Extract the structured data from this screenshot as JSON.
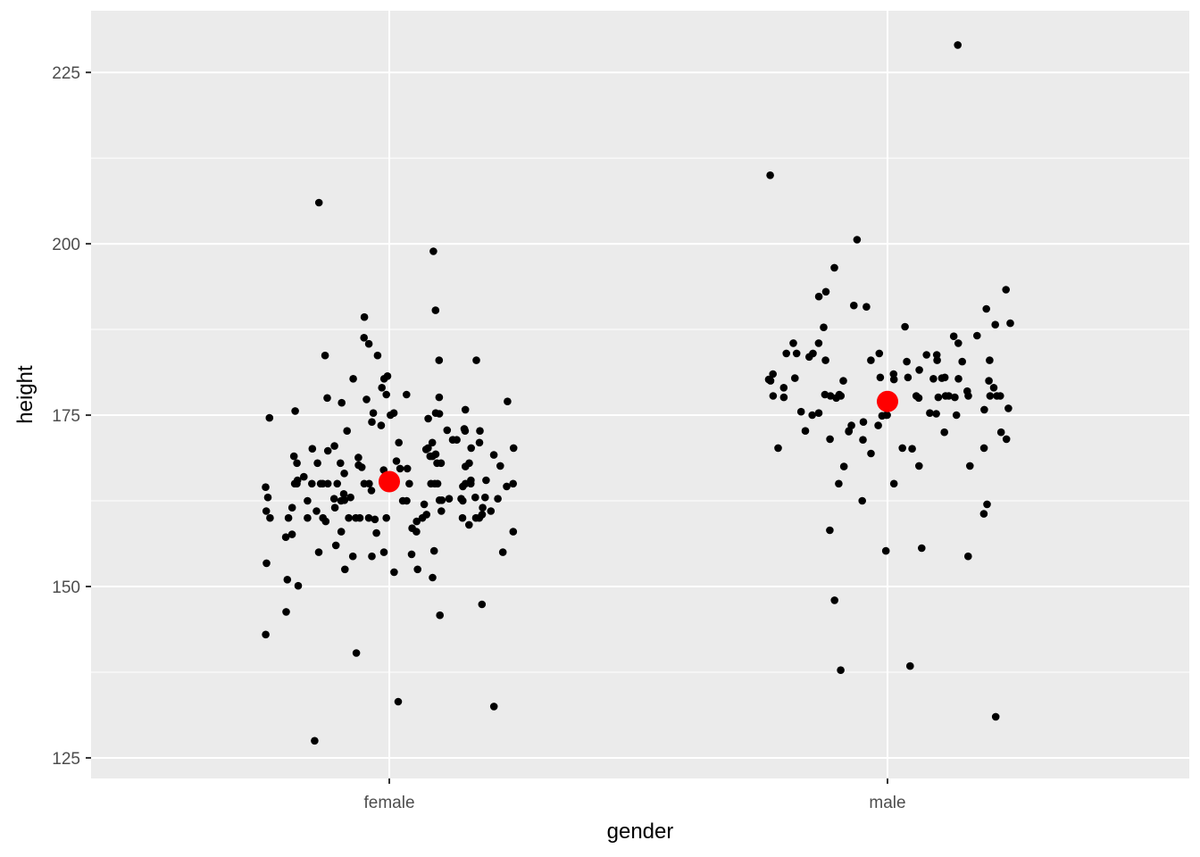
{
  "chart_data": {
    "type": "scatter",
    "xlabel": "gender",
    "ylabel": "height",
    "ylim": [
      122,
      234
    ],
    "y_ticks": [
      125,
      150,
      175,
      200,
      225
    ],
    "categories": [
      "female",
      "male"
    ],
    "grid": true,
    "colors": {
      "panel": "#ebebeb",
      "grid": "#ffffff",
      "points": "#000000",
      "mean": "#ff0000"
    },
    "series": [
      {
        "category": "female",
        "values": [
          170.2,
          168.0,
          160.0,
          158.0,
          155.2,
          151.3,
          160.0,
          163.0,
          168.0,
          170.2,
          162.8,
          160.0,
          162.5,
          170.1,
          165.0,
          165.0,
          161.0,
          162.8,
          160.5,
          163.0,
          161.5,
          179.0,
          172.8,
          160.0,
          162.8,
          140.3,
          132.5,
          147.4,
          165.0,
          164.0,
          168.0,
          162.5,
          166.0,
          163.5,
          167.7,
          175.0,
          177.0,
          173.5,
          171.4,
          165.0,
          175.3,
          161.5,
          159.0,
          158.0,
          133.2,
          160.0,
          175.2,
          157.6,
          154.7,
          151.0,
          168.0,
          165.0,
          177.6,
          169.8,
          160.0,
          189.3,
          185.4,
          167.6,
          154.4,
          160.0,
          177.5,
          165.5,
          165.0,
          164.5,
          156.0,
          170.5,
          160.0,
          155.0,
          172.7,
          180.3,
          171.0,
          183.0,
          152.5,
          183.0,
          174.6,
          162.5,
          157.8,
          166.2,
          169.0,
          165.0,
          160.0,
          155.0,
          127.5,
          152.1,
          161.0,
          159.5,
          163.0,
          162.0,
          160.5,
          186.3,
          167.5,
          169.3,
          161.5,
          160.0,
          165.0,
          180.7,
          165.0,
          178.0,
          169.0,
          172.7,
          167.2,
          165.0,
          157.2,
          162.8,
          146.3,
          183.7,
          183.7,
          175.8,
          176.8,
          171.0,
          160.0,
          165.0,
          177.3,
          174.0,
          153.4,
          152.5,
          161.0,
          165.5,
          164.6,
          170.2,
          158.5,
          160.0,
          162.5,
          143.0,
          165.0,
          168.3,
          170.0,
          175.3,
          171.0,
          178.0,
          174.5,
          169.2,
          165.0,
          165.0,
          162.5,
          168.0,
          198.9,
          159.8,
          162.6,
          190.3,
          180.3,
          168.8,
          159.5,
          172.7,
          169.0,
          167.2,
          164.6,
          162.6,
          175.3,
          165.0,
          173.0,
          166.5,
          167.0,
          155.0,
          150.1,
          165.5,
          163.0,
          161.0,
          158.0,
          167.4,
          160.0,
          168.0,
          165.0,
          175.6,
          171.4,
          162.6,
          145.8,
          154.4,
          206.0
        ]
      },
      {
        "category": "male",
        "values": [
          180.5,
          179.0,
          177.8,
          184.0,
          170.2,
          173.5,
          176.0,
          175.3,
          178.0,
          180.5,
          193.3,
          193.0,
          177.8,
          165.0,
          178.5,
          196.5,
          181.0,
          172.5,
          165.0,
          175.2,
          180.3,
          177.8,
          184.0,
          177.6,
          210.0,
          180.4,
          155.2,
          173.5,
          191.0,
          183.0,
          181.6,
          182.8,
          172.7,
          169.4,
          183.0,
          138.4,
          137.8,
          131.0,
          188.2,
          177.8,
          171.4,
          160.6,
          171.5,
          177.8,
          174.0,
          162.5,
          177.8,
          171.5,
          180.0,
          190.8,
          200.6,
          172.7,
          162.0,
          177.5,
          172.5,
          180.4,
          188.4,
          180.3,
          184.0,
          175.3,
          190.5,
          178.0,
          185.5,
          170.1,
          167.6,
          170.2,
          177.6,
          177.8,
          177.8,
          180.2,
          183.8,
          148.0,
          154.4,
          180.5,
          177.8,
          180.2,
          175.8,
          184.0,
          185.5,
          185.5,
          183.0,
          182.8,
          158.2,
          180.0,
          186.6,
          175.0,
          183.8,
          177.6,
          175.0,
          167.6,
          177.8,
          186.5,
          192.3,
          175.5,
          179.0,
          187.8,
          172.6,
          174.9,
          175.0,
          170.2,
          167.5,
          177.5,
          180.0,
          183.5,
          181.0,
          183.0,
          229.0,
          175.0,
          155.6,
          187.9
        ]
      },
      {
        "name": "mean",
        "category_means": [
          165.3,
          177.0
        ]
      }
    ]
  }
}
